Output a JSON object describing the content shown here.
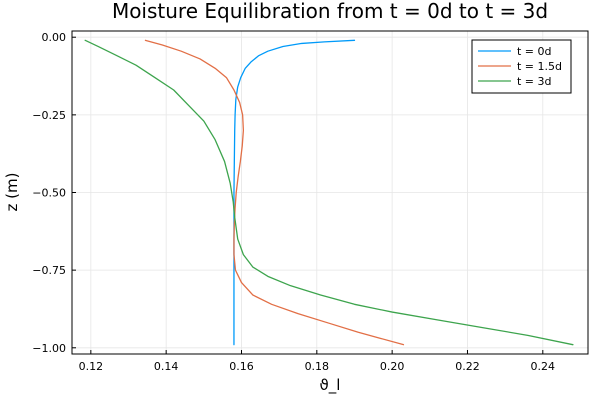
{
  "chart_data": {
    "type": "line",
    "title": "Moisture Equilibration from t = 0d to t = 3d",
    "xlabel": "ϑ_l",
    "ylabel": "z (m)",
    "xlim": [
      0.115,
      0.252
    ],
    "ylim": [
      -1.02,
      0.02
    ],
    "xticks": [
      0.12,
      0.14,
      0.16,
      0.18,
      0.2,
      0.22,
      0.24
    ],
    "xtick_labels": [
      "0.12",
      "0.14",
      "0.16",
      "0.18",
      "0.20",
      "0.22",
      "0.24"
    ],
    "yticks": [
      0.0,
      -0.25,
      -0.5,
      -0.75,
      -1.0
    ],
    "ytick_labels": [
      "0.00",
      "−0.25",
      "−0.50",
      "−0.75",
      "−1.00"
    ],
    "grid": true,
    "legend": "top-right",
    "series": [
      {
        "name": "t = 0d",
        "color": "#009af9",
        "points": [
          [
            0.19,
            -0.01
          ],
          [
            0.182,
            -0.015
          ],
          [
            0.176,
            -0.02
          ],
          [
            0.171,
            -0.03
          ],
          [
            0.167,
            -0.045
          ],
          [
            0.1645,
            -0.06
          ],
          [
            0.1625,
            -0.08
          ],
          [
            0.161,
            -0.1
          ],
          [
            0.1598,
            -0.13
          ],
          [
            0.159,
            -0.16
          ],
          [
            0.1585,
            -0.2
          ],
          [
            0.1583,
            -0.25
          ],
          [
            0.1582,
            -0.3
          ],
          [
            0.1581,
            -0.4
          ],
          [
            0.158,
            -0.5
          ],
          [
            0.158,
            -0.6
          ],
          [
            0.158,
            -0.7
          ],
          [
            0.158,
            -0.8
          ],
          [
            0.158,
            -0.9
          ],
          [
            0.158,
            -0.99
          ]
        ]
      },
      {
        "name": "t = 1.5d",
        "color": "#e26f46",
        "points": [
          [
            0.1345,
            -0.01
          ],
          [
            0.139,
            -0.025
          ],
          [
            0.144,
            -0.045
          ],
          [
            0.149,
            -0.07
          ],
          [
            0.153,
            -0.1
          ],
          [
            0.156,
            -0.13
          ],
          [
            0.158,
            -0.17
          ],
          [
            0.1595,
            -0.21
          ],
          [
            0.1603,
            -0.25
          ],
          [
            0.1605,
            -0.3
          ],
          [
            0.1602,
            -0.35
          ],
          [
            0.1597,
            -0.4
          ],
          [
            0.1591,
            -0.45
          ],
          [
            0.1586,
            -0.5
          ],
          [
            0.1583,
            -0.55
          ],
          [
            0.1581,
            -0.6
          ],
          [
            0.158,
            -0.65
          ],
          [
            0.158,
            -0.7
          ],
          [
            0.1584,
            -0.75
          ],
          [
            0.16,
            -0.79
          ],
          [
            0.163,
            -0.83
          ],
          [
            0.168,
            -0.86
          ],
          [
            0.175,
            -0.89
          ],
          [
            0.183,
            -0.92
          ],
          [
            0.191,
            -0.95
          ],
          [
            0.197,
            -0.97
          ],
          [
            0.203,
            -0.99
          ]
        ]
      },
      {
        "name": "t = 3d",
        "color": "#3da44d",
        "points": [
          [
            0.1185,
            -0.01
          ],
          [
            0.122,
            -0.03
          ],
          [
            0.127,
            -0.06
          ],
          [
            0.132,
            -0.09
          ],
          [
            0.137,
            -0.13
          ],
          [
            0.142,
            -0.17
          ],
          [
            0.146,
            -0.22
          ],
          [
            0.15,
            -0.27
          ],
          [
            0.153,
            -0.33
          ],
          [
            0.1555,
            -0.4
          ],
          [
            0.157,
            -0.47
          ],
          [
            0.1578,
            -0.53
          ],
          [
            0.1582,
            -0.58
          ],
          [
            0.159,
            -0.65
          ],
          [
            0.1605,
            -0.7
          ],
          [
            0.163,
            -0.74
          ],
          [
            0.167,
            -0.77
          ],
          [
            0.173,
            -0.8
          ],
          [
            0.181,
            -0.83
          ],
          [
            0.19,
            -0.86
          ],
          [
            0.2,
            -0.885
          ],
          [
            0.212,
            -0.91
          ],
          [
            0.224,
            -0.935
          ],
          [
            0.236,
            -0.96
          ],
          [
            0.248,
            -0.99
          ]
        ]
      }
    ]
  }
}
